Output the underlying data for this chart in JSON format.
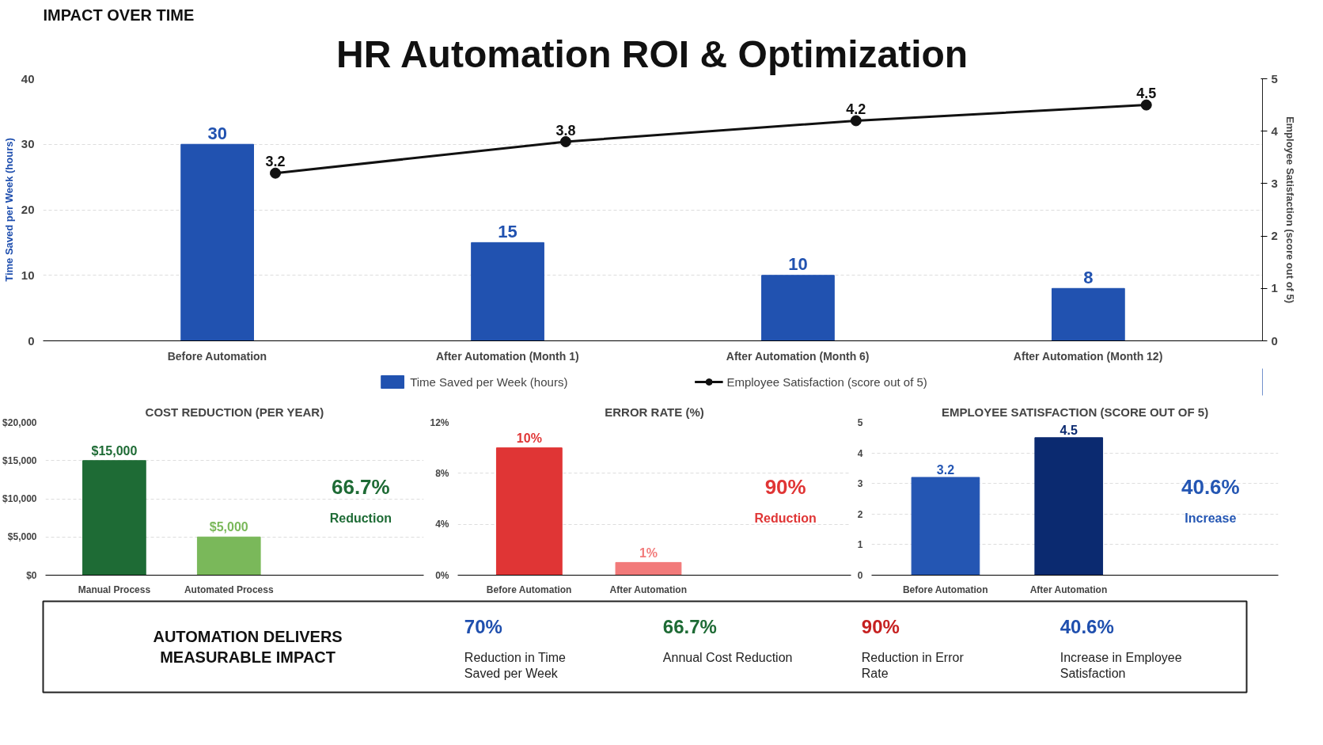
{
  "chart_data": [
    {
      "type": "bar",
      "title": "HR Automation ROI & Optimization",
      "subtitle": "IMPACT OVER TIME",
      "categories": [
        "Before Automation",
        "After Automation (Month 1)",
        "After Automation (Month 6)",
        "After Automation (Month 12)"
      ],
      "series": [
        {
          "name": "Time Saved per Week (hours)",
          "type": "bar",
          "color": "#2152b0",
          "values": [
            30,
            15,
            10,
            8
          ]
        },
        {
          "name": "Employee Satisfaction (score out of 5)",
          "type": "line",
          "axis": "y2",
          "color": "#111111",
          "values": [
            3.2,
            3.8,
            4.2,
            4.5
          ]
        }
      ],
      "ylabel": "Time Saved per Week (hours)",
      "y2label": "Employee Satisfaction (score out of 5)",
      "ylim": [
        0,
        40
      ],
      "yticks": [
        0,
        10,
        20,
        30,
        40
      ],
      "y2lim": [
        0,
        5
      ],
      "y2ticks": [
        0,
        1,
        2,
        3,
        4,
        5
      ],
      "data_labels": true,
      "marker": "circle",
      "line_style": "solid",
      "legend": "bottom",
      "grid": "y"
    },
    {
      "type": "bar",
      "title": "COST REDUCTION (PER YEAR)",
      "categories": [
        "Manual Process",
        "Automated Process"
      ],
      "values": [
        15000,
        5000
      ],
      "colors": [
        "#1e6b35",
        "#7ab85a"
      ],
      "value_labels": [
        "$15,000",
        "$5,000"
      ],
      "ylim": [
        0,
        20000
      ],
      "yticks": [
        {
          "value": 0,
          "label": "$0"
        },
        {
          "value": 5000,
          "label": "$5,000"
        },
        {
          "value": 10000,
          "label": "$10,000"
        },
        {
          "value": 15000,
          "label": "$15,000"
        },
        {
          "value": 20000,
          "label": "$20,000"
        }
      ],
      "annotations": [
        "66.7%",
        "Reduction"
      ],
      "grid": "y"
    },
    {
      "type": "bar",
      "title": "ERROR RATE (%)",
      "categories": [
        "Before Automation",
        "After Automation"
      ],
      "values": [
        10,
        1
      ],
      "colors": [
        "#e03535",
        "#f27a7a"
      ],
      "value_labels": [
        "10%",
        "1%"
      ],
      "ylim": [
        0,
        12
      ],
      "yticks": [
        {
          "value": 0,
          "label": "0%"
        },
        {
          "value": 4,
          "label": "4%"
        },
        {
          "value": 8,
          "label": "8%"
        },
        {
          "value": 12,
          "label": "12%"
        }
      ],
      "annotations": [
        "90%",
        "Reduction"
      ],
      "grid": "y"
    },
    {
      "type": "bar",
      "title": "EMPLOYEE SATISFACTION (SCORE OUT OF 5)",
      "categories": [
        "Before Automation",
        "After Automation"
      ],
      "values": [
        3.2,
        4.5
      ],
      "colors": [
        "#2456b3",
        "#0b2a70"
      ],
      "data_labels": true,
      "ylim": [
        0,
        5
      ],
      "yticks": [
        0,
        1,
        2,
        3,
        4,
        5
      ],
      "annotations": [
        "40.6%",
        "Increase"
      ],
      "grid": "y"
    },
    {
      "type": "other",
      "title": "AUTOMATION DELIVERS MEASURABLE IMPACT",
      "annotations": [
        "70%",
        "Reduction in Time Saved per Week",
        "66.7%",
        "Annual Cost Reduction",
        "90%",
        "Reduction in Error Rate",
        "40.6%",
        "Increase in Employee Satisfaction"
      ],
      "colors": [
        "#1f4fae",
        "#1e6b35",
        "#c62020",
        "#1f4fae"
      ]
    }
  ]
}
